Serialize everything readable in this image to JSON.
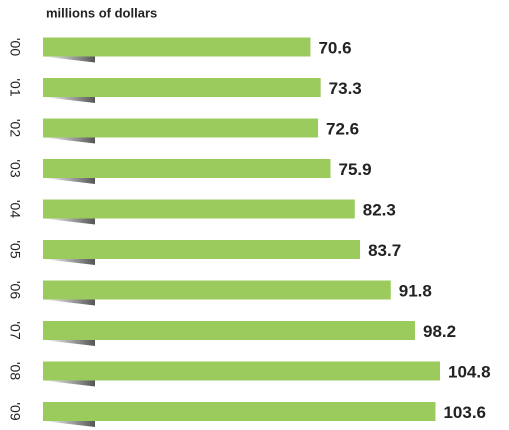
{
  "chart_data": {
    "type": "bar",
    "orientation": "horizontal",
    "title": "millions of dollars",
    "categories": [
      "'00",
      "'01",
      "'02",
      "'03",
      "'04",
      "'05",
      "'06",
      "'07",
      "'08",
      "'09"
    ],
    "values": [
      70.6,
      73.3,
      72.6,
      75.9,
      82.3,
      83.7,
      91.8,
      98.2,
      104.8,
      103.6
    ],
    "color": "#9bcb5c"
  }
}
